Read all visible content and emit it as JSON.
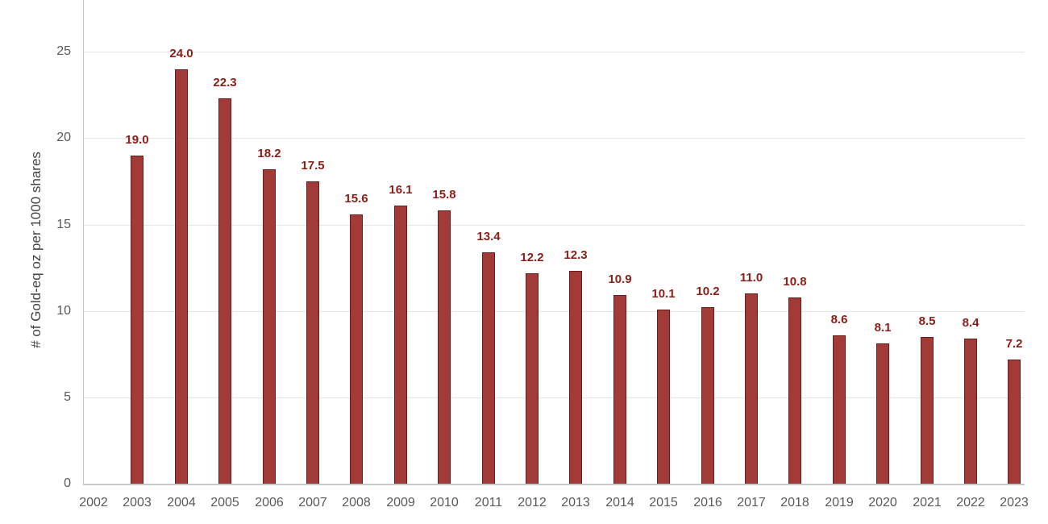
{
  "chart_data": {
    "type": "bar",
    "title": "",
    "xlabel": "",
    "ylabel": "# of Gold-eq oz per 1000 shares",
    "categories": [
      "2002",
      "2003",
      "2004",
      "2005",
      "2006",
      "2007",
      "2008",
      "2009",
      "2010",
      "2011",
      "2012",
      "2013",
      "2014",
      "2015",
      "2016",
      "2017",
      "2018",
      "2019",
      "2020",
      "2021",
      "2022",
      "2023"
    ],
    "values": [
      null,
      19.0,
      24.0,
      22.3,
      18.2,
      17.5,
      15.6,
      16.1,
      15.8,
      13.4,
      12.2,
      12.3,
      10.9,
      10.1,
      10.2,
      11.0,
      10.8,
      8.6,
      8.1,
      8.5,
      8.4,
      7.2
    ],
    "data_labels": [
      null,
      "19.0",
      "24.0",
      "22.3",
      "18.2",
      "17.5",
      "15.6",
      "16.1",
      "15.8",
      "13.4",
      "12.2",
      "12.3",
      "10.9",
      "10.1",
      "10.2",
      "11.0",
      "10.8",
      "8.6",
      "8.1",
      "8.5",
      "8.4",
      "7.2"
    ],
    "ylim": [
      0,
      28
    ],
    "yticks": [
      0,
      5,
      10,
      15,
      20,
      25
    ],
    "grid": true,
    "legend": "none",
    "colors": {
      "bar_fill": "#a23b38",
      "bar_border": "#641f1d",
      "data_label": "#8b1e16",
      "gridline": "#e7e7e7",
      "axis_line": "#c3c3c3",
      "tick_text": "#595959",
      "axis_title_text": "#444444"
    }
  }
}
